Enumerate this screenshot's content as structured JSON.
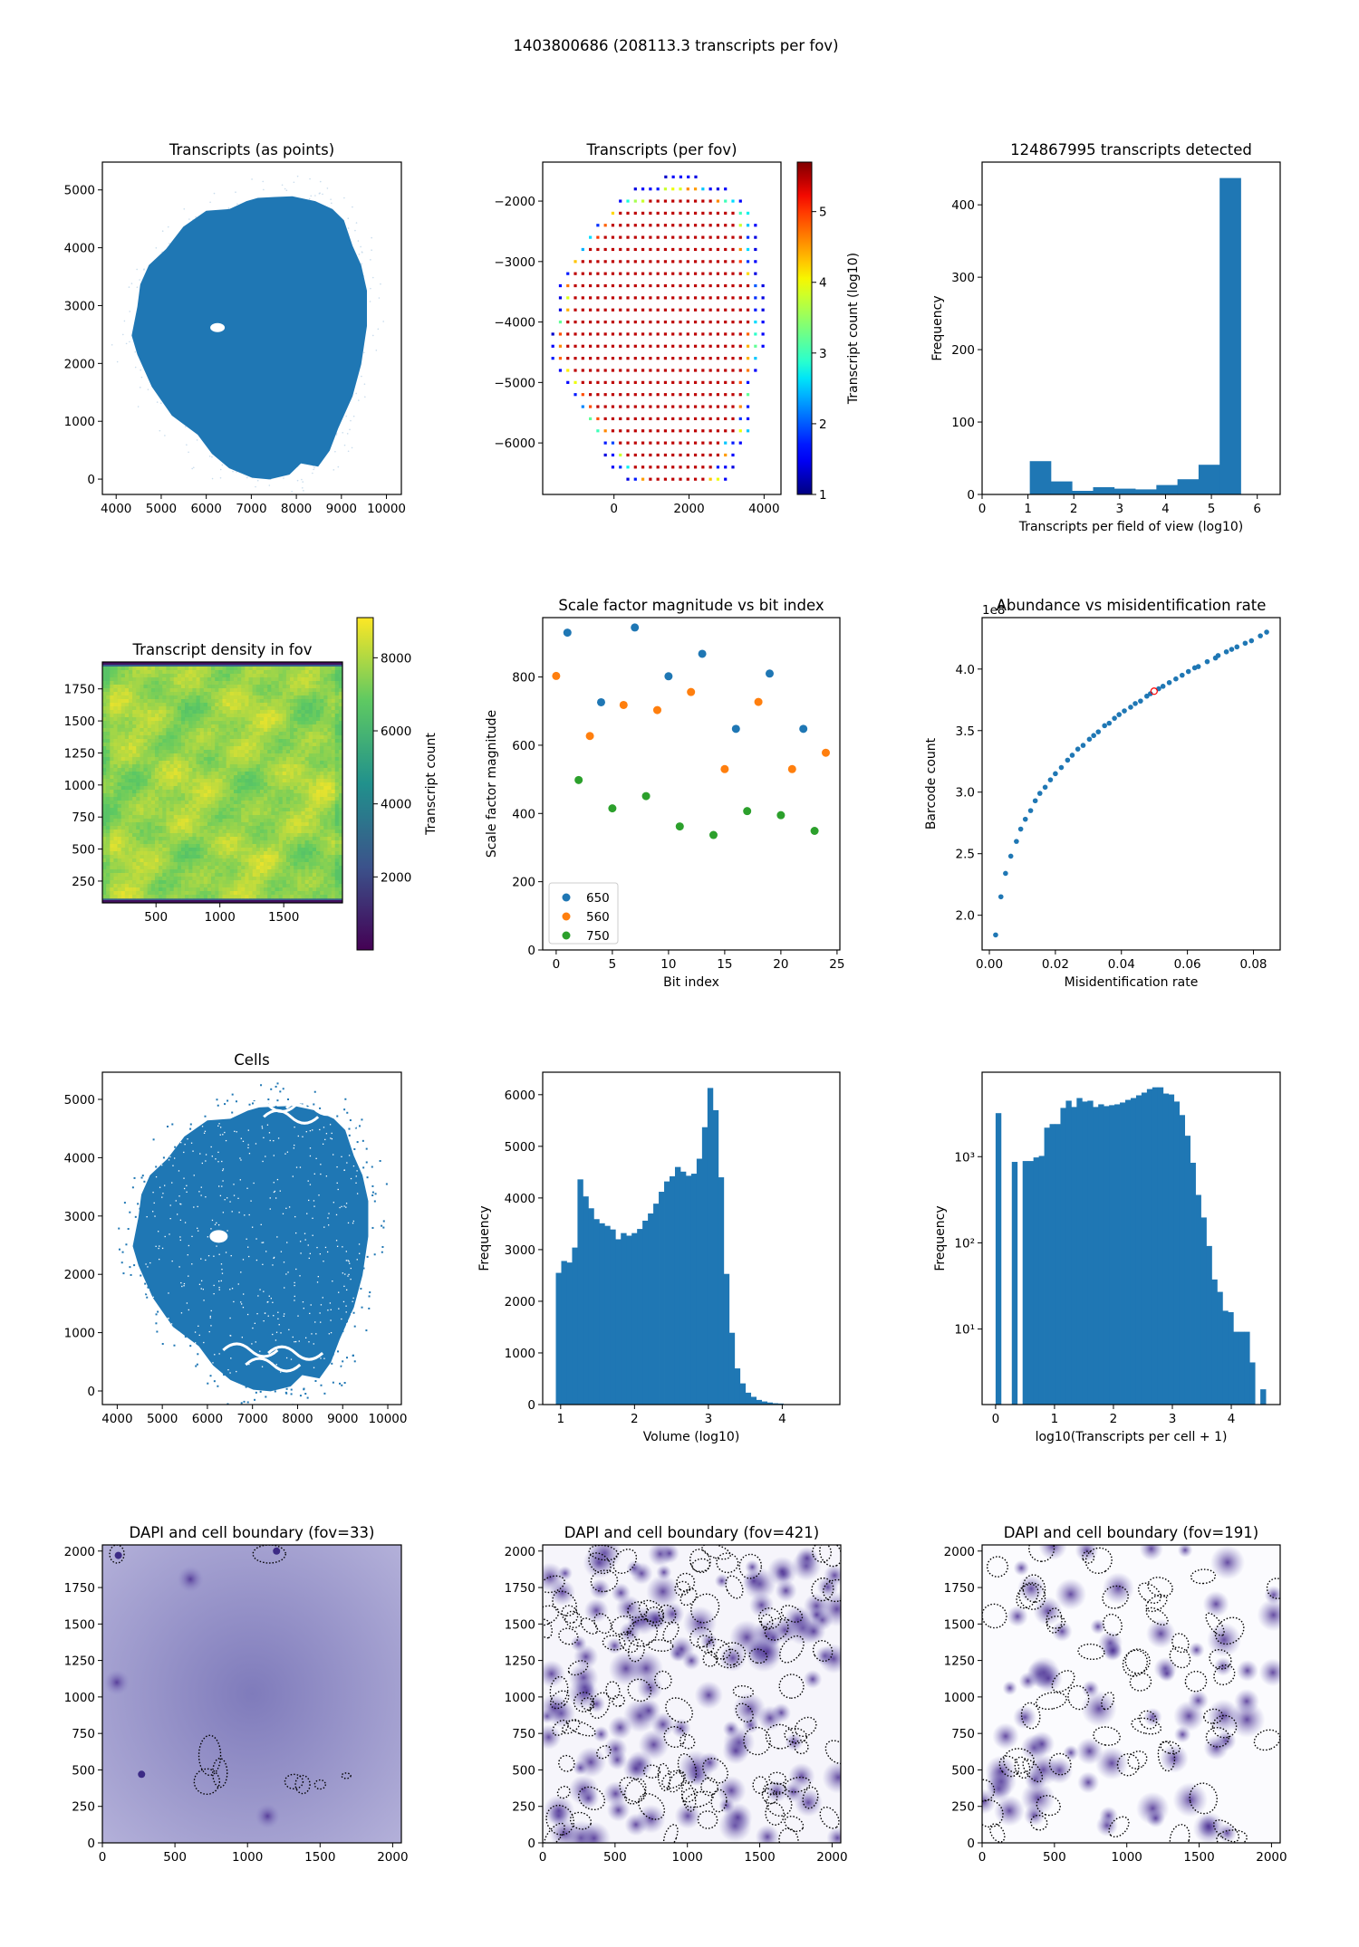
{
  "suptitle": "1403800686 (208113.3 transcripts per fov)",
  "colors": {
    "blue": "#1f77b4",
    "orange": "#ff7f0e",
    "green": "#2ca02c",
    "highlight": "#ff0000"
  },
  "chart_data": [
    {
      "type": "scatter",
      "title": "Transcripts (as points)",
      "xlabel": "",
      "ylabel": "",
      "xlim": [
        3694,
        10331
      ],
      "ylim": [
        -265,
        5481
      ],
      "xticks": [
        4000,
        5000,
        6000,
        7000,
        8000,
        9000,
        10000
      ],
      "xticklabels": [
        "4000",
        "5000",
        "6000",
        "7000",
        "8000",
        "9000",
        "10000"
      ],
      "yticks": [
        0,
        1000,
        2000,
        3000,
        4000,
        5000
      ],
      "yticklabels": [
        "0",
        "1000",
        "2000",
        "3000",
        "4000",
        "5000"
      ]
    },
    {
      "type": "scatter",
      "title": "Transcripts (per fov)",
      "xlabel": "",
      "ylabel": "",
      "xlim": [
        -1900,
        4450
      ],
      "ylim": [
        -6852,
        -1355
      ],
      "xticks": [
        0,
        2000,
        4000
      ],
      "xticklabels": [
        "0",
        "2000",
        "4000"
      ],
      "yticks": [
        -2000,
        -3000,
        -4000,
        -5000,
        -6000
      ],
      "yticklabels": [
        "−2000",
        "−3000",
        "−4000",
        "−5000",
        "−6000"
      ],
      "colorbar": {
        "label": "Transcript count (log10)",
        "cmap": "jet",
        "range": [
          1,
          5.7
        ],
        "ticks": [
          1,
          2,
          3,
          4,
          5
        ],
        "ticklabels": [
          "1",
          "2",
          "3",
          "4",
          "5"
        ]
      },
      "fov_spacing": 200,
      "interior_value": 5.45,
      "rows": [
        {
          "y": -1600,
          "x0": 1380,
          "n": 5,
          "left": [
            1.3,
            1.5,
            1.5,
            1.6,
            1.4
          ],
          "right": []
        },
        {
          "y": -1800,
          "x0": 570,
          "n": 13,
          "left": [
            1.4,
            1.5,
            1.6,
            1.7,
            3.8,
            4.0,
            3.9
          ],
          "right": [
            4.6,
            4.5,
            2.5,
            1.5,
            1.4,
            1.5
          ]
        },
        {
          "y": -2000,
          "x0": 170,
          "n": 17,
          "left": [
            1.5,
            2.8,
            3.6,
            3.8
          ],
          "right": [
            4.6,
            3.0,
            2.6,
            1.5
          ]
        },
        {
          "y": -2200,
          "x0": -30,
          "n": 19,
          "left": [
            4.2
          ],
          "right": [
            3.0,
            2.7
          ]
        },
        {
          "y": -2400,
          "x0": -430,
          "n": 22,
          "left": [
            1.8,
            4.8
          ],
          "right": [
            3.8,
            2.5,
            1.5
          ]
        },
        {
          "y": -2600,
          "x0": -630,
          "n": 23,
          "left": [
            2.6,
            5.0
          ],
          "right": [
            1.8,
            1.4
          ]
        },
        {
          "y": -2800,
          "x0": -830,
          "n": 24,
          "left": [
            2.4
          ],
          "right": [
            4.6,
            2.6,
            1.4
          ]
        },
        {
          "y": -3000,
          "x0": -1030,
          "n": 25,
          "left": [
            4.3
          ],
          "right": [
            5.0,
            1.8,
            1.5
          ]
        },
        {
          "y": -3200,
          "x0": -1230,
          "n": 26,
          "left": [
            1.7
          ],
          "right": [
            4.2,
            1.4
          ]
        },
        {
          "y": -3400,
          "x0": -1430,
          "n": 28,
          "left": [
            1.5,
            4.7
          ],
          "right": [
            2.0,
            1.4
          ]
        },
        {
          "y": -3600,
          "x0": -1430,
          "n": 28,
          "left": [
            1.4,
            3.9
          ],
          "right": [
            1.8,
            1.4
          ]
        },
        {
          "y": -3800,
          "x0": -1430,
          "n": 28,
          "left": [
            1.4,
            4.4
          ],
          "right": [
            1.7,
            1.4
          ]
        },
        {
          "y": -4000,
          "x0": -1430,
          "n": 28,
          "left": [
            3.2
          ],
          "right": [
            2.6,
            1.6
          ]
        },
        {
          "y": -4200,
          "x0": -1630,
          "n": 29,
          "left": [
            1.3,
            4.9
          ],
          "right": [
            4.8,
            2.9,
            1.5
          ]
        },
        {
          "y": -4400,
          "x0": -1630,
          "n": 29,
          "left": [
            1.5,
            4.6
          ],
          "right": [
            4.4,
            3.2,
            1.6
          ]
        },
        {
          "y": -4600,
          "x0": -1630,
          "n": 28,
          "left": [
            1.7,
            4.8
          ],
          "right": [
            4.4,
            2.5
          ]
        },
        {
          "y": -4800,
          "x0": -1430,
          "n": 27,
          "left": [
            1.5,
            4.1
          ],
          "right": [
            4.7,
            1.5
          ]
        },
        {
          "y": -5000,
          "x0": -1230,
          "n": 25,
          "left": [
            1.6,
            4.0
          ],
          "right": [
            4.9,
            1.6
          ]
        },
        {
          "y": -5200,
          "x0": -1030,
          "n": 24,
          "left": [
            1.7,
            4.9
          ],
          "right": [
            3.2
          ]
        },
        {
          "y": -5400,
          "x0": -830,
          "n": 23,
          "left": [
            2.2,
            4.9
          ],
          "right": [
            4.6,
            1.7
          ]
        },
        {
          "y": -5600,
          "x0": -630,
          "n": 22,
          "left": [
            3.2,
            4.9
          ],
          "right": [
            1.8,
            1.6
          ]
        },
        {
          "y": -5800,
          "x0": -430,
          "n": 21,
          "left": [
            3.0,
            4.6
          ],
          "right": [
            4.0,
            2.5
          ]
        },
        {
          "y": -6000,
          "x0": -230,
          "n": 19,
          "left": [
            1.7,
            1.9
          ],
          "right": [
            2.5,
            1.7,
            1.6
          ]
        },
        {
          "y": -6200,
          "x0": -230,
          "n": 18,
          "left": [
            1.4,
            1.7,
            3.8
          ],
          "right": [
            4.5,
            1.6
          ]
        },
        {
          "y": -6400,
          "x0": -30,
          "n": 17,
          "left": [
            1.5,
            1.8,
            2.7
          ],
          "right": [
            1.7,
            1.5,
            1.4
          ]
        },
        {
          "y": -6600,
          "x0": 370,
          "n": 14,
          "left": [
            1.4,
            1.7,
            4.5
          ],
          "right": [
            4.3,
            4.0,
            1.5
          ]
        }
      ]
    },
    {
      "type": "bar",
      "title": "124867995 transcripts detected",
      "xlabel": "Transcripts per field of view (log10)",
      "ylabel": "Frequency",
      "xlim": [
        0,
        6.5
      ],
      "ylim": [
        0,
        459
      ],
      "xticks": [
        0,
        1,
        2,
        3,
        4,
        5,
        6
      ],
      "xticklabels": [
        "0",
        "1",
        "2",
        "3",
        "4",
        "5",
        "6"
      ],
      "yticks": [
        0,
        100,
        200,
        300,
        400
      ],
      "yticklabels": [
        "0",
        "100",
        "200",
        "300",
        "400"
      ],
      "bin_start": 1.04,
      "bin_width": 0.46,
      "values": [
        46,
        18,
        5,
        10,
        8,
        7,
        13,
        21,
        41,
        437
      ]
    },
    {
      "type": "heatmap",
      "title": "Transcript density in fov",
      "xlabel": "",
      "ylabel": "",
      "xlim": [
        80,
        1960
      ],
      "ylim": [
        80,
        1960
      ],
      "xticks": [
        500,
        1000,
        1500
      ],
      "xticklabels": [
        "500",
        "1000",
        "1500"
      ],
      "yticks": [
        250,
        500,
        750,
        1000,
        1250,
        1500,
        1750
      ],
      "yticklabels": [
        "250",
        "500",
        "750",
        "1000",
        "1250",
        "1500",
        "1750"
      ],
      "value_range": [
        6600,
        8800
      ],
      "colorbar": {
        "label": "Transcript count",
        "cmap": "viridis",
        "range": [
          0,
          9100
        ],
        "ticks": [
          2000,
          4000,
          6000,
          8000
        ],
        "ticklabels": [
          "2000",
          "4000",
          "6000",
          "8000"
        ]
      }
    },
    {
      "type": "scatter",
      "title": "Scale factor magnitude vs bit index",
      "xlabel": "Bit index",
      "ylabel": "Scale factor magnitude",
      "xlim": [
        -1.2,
        25.25
      ],
      "ylim": [
        0,
        974
      ],
      "xticks": [
        0,
        5,
        10,
        15,
        20,
        25
      ],
      "xticklabels": [
        "0",
        "5",
        "10",
        "15",
        "20",
        "25"
      ],
      "yticks": [
        0,
        200,
        400,
        600,
        800
      ],
      "yticklabels": [
        "0",
        "200",
        "400",
        "600",
        "800"
      ],
      "legend": "bottom-left",
      "series": [
        {
          "name": "650",
          "color": "#1f77b4",
          "x": [
            1,
            4,
            7,
            10,
            13,
            16,
            19,
            22
          ],
          "y": [
            930,
            726,
            945,
            802,
            868,
            648,
            810,
            648
          ]
        },
        {
          "name": "560",
          "color": "#ff7f0e",
          "x": [
            0,
            3,
            6,
            9,
            12,
            15,
            18,
            21,
            24
          ],
          "y": [
            803,
            627,
            718,
            703,
            756,
            530,
            727,
            530,
            578
          ]
        },
        {
          "name": "750",
          "color": "#2ca02c",
          "x": [
            2,
            5,
            8,
            11,
            14,
            17,
            20,
            23
          ],
          "y": [
            498,
            415,
            451,
            362,
            337,
            407,
            395,
            349
          ]
        }
      ]
    },
    {
      "type": "scatter",
      "title": "Abundance vs misidentification rate",
      "xlabel": "Misidentification rate",
      "ylabel": "Barcode count",
      "offset_text": "1e8",
      "xlim": [
        -0.0022,
        0.0881
      ],
      "ylim": [
        1.718,
        4.418
      ],
      "xticks": [
        0,
        0.02,
        0.04,
        0.06,
        0.08
      ],
      "xticklabels": [
        "0.00",
        "0.02",
        "0.04",
        "0.06",
        "0.08"
      ],
      "yticks": [
        2.0,
        2.5,
        3.0,
        3.5,
        4.0
      ],
      "yticklabels": [
        "2.0",
        "2.5",
        "3.0",
        "3.5",
        "4.0"
      ],
      "x": [
        0.0019,
        0.0035,
        0.0049,
        0.0065,
        0.0082,
        0.0095,
        0.0109,
        0.0125,
        0.0139,
        0.0153,
        0.0169,
        0.0185,
        0.02,
        0.0218,
        0.0237,
        0.0251,
        0.0268,
        0.0284,
        0.0303,
        0.0316,
        0.033,
        0.0349,
        0.0363,
        0.0379,
        0.0393,
        0.0409,
        0.0428,
        0.0442,
        0.0458,
        0.0477,
        0.0488,
        0.0513,
        0.0526,
        0.0545,
        0.0565,
        0.0584,
        0.0603,
        0.0622,
        0.0633,
        0.066,
        0.0685,
        0.0693,
        0.0718,
        0.0734,
        0.075,
        0.0775,
        0.0794,
        0.0821,
        0.084
      ],
      "y": [
        1.84,
        2.15,
        2.34,
        2.48,
        2.6,
        2.7,
        2.78,
        2.85,
        2.93,
        2.99,
        3.04,
        3.1,
        3.15,
        3.2,
        3.26,
        3.3,
        3.35,
        3.38,
        3.43,
        3.46,
        3.49,
        3.54,
        3.56,
        3.6,
        3.63,
        3.66,
        3.69,
        3.72,
        3.74,
        3.78,
        3.8,
        3.84,
        3.86,
        3.89,
        3.92,
        3.95,
        3.98,
        4.01,
        4.02,
        4.06,
        4.09,
        4.11,
        4.14,
        4.16,
        4.18,
        4.21,
        4.23,
        4.27,
        4.3
      ],
      "highlight": {
        "x": 0.0499,
        "y": 3.82
      }
    },
    {
      "type": "scatter",
      "title": "Cells",
      "xlabel": "",
      "ylabel": "",
      "xlim": [
        3671,
        10301
      ],
      "ylim": [
        -233,
        5466
      ],
      "xticks": [
        4000,
        5000,
        6000,
        7000,
        8000,
        9000,
        10000
      ],
      "xticklabels": [
        "4000",
        "5000",
        "6000",
        "7000",
        "8000",
        "9000",
        "10000"
      ],
      "yticks": [
        0,
        1000,
        2000,
        3000,
        4000,
        5000
      ],
      "yticklabels": [
        "0",
        "1000",
        "2000",
        "3000",
        "4000",
        "5000"
      ]
    },
    {
      "type": "bar",
      "title": "",
      "xlabel": "Volume (log10)",
      "ylabel": "Frequency",
      "xlim": [
        0.757,
        4.78
      ],
      "ylim": [
        0,
        6435
      ],
      "xticks": [
        1,
        2,
        3,
        4
      ],
      "xticklabels": [
        "1",
        "2",
        "3",
        "4"
      ],
      "yticks": [
        0,
        1000,
        2000,
        3000,
        4000,
        5000,
        6000
      ],
      "yticklabels": [
        "0",
        "1000",
        "2000",
        "3000",
        "4000",
        "5000",
        "6000"
      ],
      "bin_start": 0.935,
      "bin_width": 0.0733,
      "values": [
        2550,
        2780,
        2750,
        3040,
        4360,
        4030,
        3800,
        3590,
        3510,
        3460,
        3390,
        3200,
        3320,
        3270,
        3320,
        3400,
        3560,
        3700,
        3890,
        4120,
        4320,
        4420,
        4600,
        4510,
        4430,
        4470,
        4760,
        5370,
        6130,
        5700,
        4400,
        2530,
        1390,
        700,
        410,
        230,
        150,
        90,
        60,
        40,
        25,
        20
      ]
    },
    {
      "type": "bar",
      "title": "",
      "xlabel": "log10(Transcripts per cell + 1)",
      "ylabel": "Frequency",
      "yscale": "log",
      "xlim": [
        -0.229,
        4.83
      ],
      "ylim": [
        1.33,
        9550
      ],
      "xticks": [
        0,
        1,
        2,
        3,
        4
      ],
      "xticklabels": [
        "0",
        "1",
        "2",
        "3",
        "4"
      ],
      "yticks": [
        10,
        100,
        1000
      ],
      "yticklabels": [
        "10¹",
        "10²",
        "10³"
      ],
      "bin_start": 0,
      "bin_width": 0.0917,
      "values": [
        3200,
        0,
        0,
        870,
        0,
        890,
        890,
        980,
        1020,
        2170,
        2390,
        2390,
        3680,
        4460,
        3770,
        4790,
        4360,
        4460,
        3770,
        4050,
        3860,
        3960,
        4050,
        4250,
        4560,
        4790,
        5150,
        5540,
        6090,
        6380,
        6380,
        5400,
        5270,
        4360,
        3040,
        1750,
        850,
        360,
        197,
        92,
        37.6,
        27,
        16.3,
        15.7,
        9.3,
        9.3,
        9.3,
        4.1,
        0,
        2
      ]
    },
    {
      "type": "image",
      "title": "DAPI and cell boundary (fov=33)",
      "xlabel": "",
      "ylabel": "",
      "xlim": [
        0,
        2060
      ],
      "ylim": [
        0,
        2042
      ],
      "xticks": [
        0,
        500,
        1000,
        1500,
        2000
      ],
      "xticklabels": [
        "0",
        "500",
        "1000",
        "1500",
        "2000"
      ],
      "yticks": [
        0,
        250,
        500,
        750,
        1000,
        1250,
        1500,
        1750,
        2000
      ],
      "yticklabels": [
        "0",
        "250",
        "500",
        "750",
        "1000",
        "1250",
        "1500",
        "1750",
        "2000"
      ]
    },
    {
      "type": "image",
      "title": "DAPI and cell boundary (fov=421)",
      "xlabel": "",
      "ylabel": "",
      "xlim": [
        0,
        2060
      ],
      "ylim": [
        0,
        2042
      ],
      "xticks": [
        0,
        500,
        1000,
        1500,
        2000
      ],
      "xticklabels": [
        "0",
        "500",
        "1000",
        "1500",
        "2000"
      ],
      "yticks": [
        0,
        250,
        500,
        750,
        1000,
        1250,
        1500,
        1750,
        2000
      ],
      "yticklabels": [
        "0",
        "250",
        "500",
        "750",
        "1000",
        "1250",
        "1500",
        "1750",
        "2000"
      ]
    },
    {
      "type": "image",
      "title": "DAPI and cell boundary (fov=191)",
      "xlabel": "",
      "ylabel": "",
      "xlim": [
        0,
        2060
      ],
      "ylim": [
        0,
        2042
      ],
      "xticks": [
        0,
        500,
        1000,
        1500,
        2000
      ],
      "xticklabels": [
        "0",
        "500",
        "1000",
        "1500",
        "2000"
      ],
      "yticks": [
        0,
        250,
        500,
        750,
        1000,
        1250,
        1500,
        1750,
        2000
      ],
      "yticklabels": [
        "0",
        "250",
        "500",
        "750",
        "1000",
        "1250",
        "1500",
        "1750",
        "2000"
      ]
    }
  ]
}
